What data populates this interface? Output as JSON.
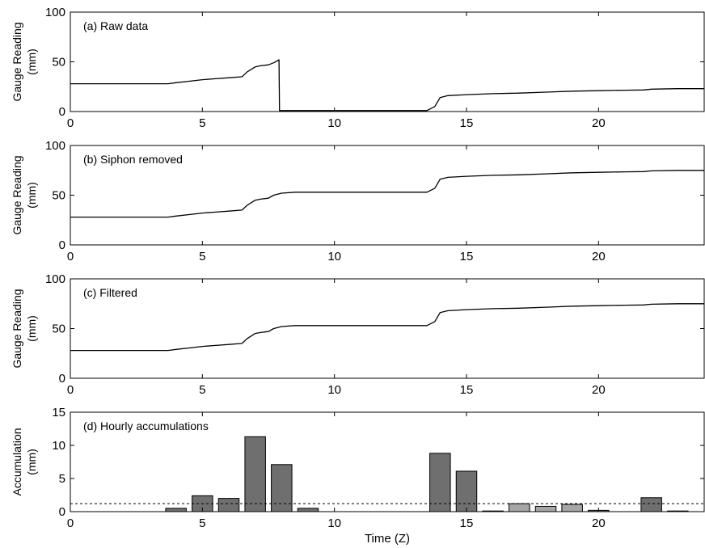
{
  "colors": {
    "line": "#000000",
    "bar_dark": "#6f6f6f",
    "bar_light": "#a6a6a6",
    "axis": "#000000"
  },
  "chart_data": [
    {
      "type": "line",
      "title": "(a) Raw data",
      "ylabel": [
        "Gauge Reading",
        "(mm)"
      ],
      "xlabel": "",
      "xlim": [
        0,
        24
      ],
      "ylim": [
        0,
        100
      ],
      "xticks": [
        0,
        5,
        10,
        15,
        20
      ],
      "yticks": [
        0,
        50,
        100
      ],
      "series": [
        {
          "x": [
            0,
            2,
            3.7,
            4,
            4.5,
            5,
            5.5,
            6,
            6.5,
            6.7,
            7.0,
            7.2,
            7.5,
            7.7,
            7.9,
            7.92,
            8.0,
            13.5,
            13.8,
            14.0,
            14.3,
            15,
            16,
            17,
            18,
            19,
            20,
            21,
            21.7,
            22,
            23,
            24
          ],
          "y": [
            28,
            28,
            28,
            29,
            30.5,
            32,
            33,
            34,
            35,
            40,
            45,
            46,
            47,
            49,
            52,
            1,
            1,
            1,
            5,
            14,
            16,
            17,
            18,
            18.5,
            19.5,
            20.5,
            21,
            21.5,
            21.7,
            22.5,
            23,
            23
          ]
        }
      ]
    },
    {
      "type": "line",
      "title": "(b) Siphon removed",
      "ylabel": [
        "Gauge Reading",
        "(mm)"
      ],
      "xlabel": "",
      "xlim": [
        0,
        24
      ],
      "ylim": [
        0,
        100
      ],
      "xticks": [
        0,
        5,
        10,
        15,
        20
      ],
      "yticks": [
        0,
        50,
        100
      ],
      "series": [
        {
          "x": [
            0,
            2,
            3.7,
            4,
            4.5,
            5,
            5.5,
            6,
            6.5,
            6.7,
            7.0,
            7.2,
            7.5,
            7.7,
            8.0,
            8.5,
            13.5,
            13.8,
            14.0,
            14.3,
            15,
            16,
            17,
            18,
            19,
            20,
            21,
            21.7,
            22,
            23,
            24
          ],
          "y": [
            28,
            28,
            28,
            29,
            30.5,
            32,
            33,
            34,
            35,
            40,
            45,
            46,
            47,
            50,
            52,
            53,
            53,
            57,
            66,
            68,
            69,
            70,
            70.5,
            71.5,
            72.5,
            73,
            73.5,
            73.7,
            74.5,
            75,
            75
          ]
        }
      ]
    },
    {
      "type": "line",
      "title": "(c) Filtered",
      "ylabel": [
        "Gauge Reading",
        "(mm)"
      ],
      "xlabel": "",
      "xlim": [
        0,
        24
      ],
      "ylim": [
        0,
        100
      ],
      "xticks": [
        0,
        5,
        10,
        15,
        20
      ],
      "yticks": [
        0,
        50,
        100
      ],
      "series": [
        {
          "x": [
            0,
            2,
            3.7,
            4,
            4.5,
            5,
            5.5,
            6,
            6.5,
            6.7,
            7.0,
            7.2,
            7.5,
            7.7,
            8.0,
            8.5,
            13.5,
            13.8,
            14.0,
            14.3,
            15,
            16,
            17,
            18,
            19,
            20,
            21,
            21.7,
            22,
            23,
            24
          ],
          "y": [
            28,
            28,
            28,
            29,
            30.5,
            32,
            33,
            34,
            35,
            40,
            45,
            46,
            47,
            50,
            52,
            53,
            53,
            57,
            66,
            68,
            69,
            70,
            70.5,
            71.5,
            72.5,
            73,
            73.5,
            73.7,
            74.5,
            75,
            75
          ]
        }
      ]
    },
    {
      "type": "bar",
      "title": "(d) Hourly accumulations",
      "ylabel": [
        "Accumulation",
        "(mm)"
      ],
      "xlabel": "Time (Z)",
      "xlim": [
        0,
        24
      ],
      "ylim": [
        0,
        15
      ],
      "xticks": [
        0,
        5,
        10,
        15,
        20
      ],
      "yticks": [
        0,
        5,
        10,
        15
      ],
      "threshold": 1.2,
      "bars": [
        {
          "x": 4,
          "value": 0.5,
          "shade": "dark"
        },
        {
          "x": 5,
          "value": 2.4,
          "shade": "dark"
        },
        {
          "x": 6,
          "value": 2.0,
          "shade": "dark"
        },
        {
          "x": 7,
          "value": 11.3,
          "shade": "dark"
        },
        {
          "x": 8,
          "value": 7.1,
          "shade": "dark"
        },
        {
          "x": 9,
          "value": 0.5,
          "shade": "dark"
        },
        {
          "x": 14,
          "value": 8.8,
          "shade": "dark"
        },
        {
          "x": 15,
          "value": 6.1,
          "shade": "dark"
        },
        {
          "x": 16,
          "value": 0.1,
          "shade": "dark"
        },
        {
          "x": 17,
          "value": 1.2,
          "shade": "light"
        },
        {
          "x": 18,
          "value": 0.8,
          "shade": "light"
        },
        {
          "x": 19,
          "value": 1.1,
          "shade": "light"
        },
        {
          "x": 20,
          "value": 0.2,
          "shade": "dark"
        },
        {
          "x": 22,
          "value": 2.1,
          "shade": "dark"
        },
        {
          "x": 23,
          "value": 0.1,
          "shade": "dark"
        }
      ]
    }
  ]
}
